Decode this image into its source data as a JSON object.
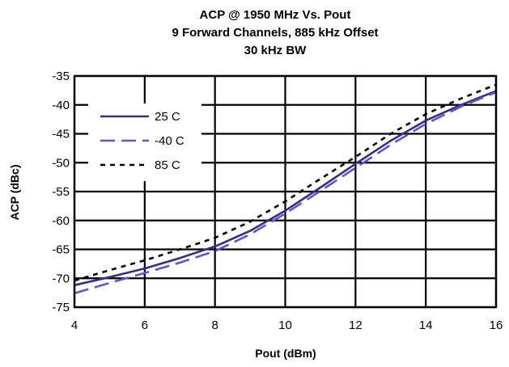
{
  "chart_data": {
    "type": "line",
    "title": [
      "ACP @ 1950 MHz Vs. Pout",
      "9 Forward Channels, 885 kHz Offset",
      "30 kHz BW"
    ],
    "xlabel": "Pout (dBm)",
    "ylabel": "ACP (dBc)",
    "xlim": [
      4,
      16
    ],
    "ylim": [
      -75,
      -35
    ],
    "x_ticks": [
      "4",
      "6",
      "8",
      "10",
      "12",
      "14",
      "16"
    ],
    "y_ticks": [
      "-35",
      "-40",
      "-45",
      "-50",
      "-55",
      "-60",
      "-65",
      "-70",
      "-75"
    ],
    "grid": true,
    "legend_position": "top-left",
    "series": [
      {
        "name": "25 C",
        "color": "#3b2d7a",
        "style": "solid",
        "points": [
          [
            4,
            -71.2
          ],
          [
            5,
            -69.8
          ],
          [
            6,
            -68.3
          ],
          [
            7,
            -66.5
          ],
          [
            8,
            -64.5
          ],
          [
            9,
            -61.8
          ],
          [
            10,
            -58.3
          ],
          [
            11,
            -54.3
          ],
          [
            12,
            -50.2
          ],
          [
            13,
            -46.2
          ],
          [
            14,
            -42.7
          ],
          [
            15,
            -40.0
          ],
          [
            16,
            -37.6
          ]
        ]
      },
      {
        "name": "-40 C",
        "color": "#5c56c8",
        "style": "dashed",
        "points": [
          [
            4,
            -72.6
          ],
          [
            5,
            -70.8
          ],
          [
            6,
            -69.1
          ],
          [
            7,
            -67.3
          ],
          [
            8,
            -65.3
          ],
          [
            9,
            -62.4
          ],
          [
            10,
            -58.8
          ],
          [
            11,
            -54.9
          ],
          [
            12,
            -50.9
          ],
          [
            13,
            -46.9
          ],
          [
            14,
            -43.3
          ],
          [
            15,
            -40.3
          ],
          [
            16,
            -37.8
          ]
        ]
      },
      {
        "name": "85 C",
        "color": "#000000",
        "style": "dotted",
        "points": [
          [
            4,
            -70.4
          ],
          [
            5,
            -68.6
          ],
          [
            6,
            -66.9
          ],
          [
            7,
            -65.0
          ],
          [
            8,
            -63.0
          ],
          [
            9,
            -60.2
          ],
          [
            10,
            -56.7
          ],
          [
            11,
            -52.8
          ],
          [
            12,
            -49.0
          ],
          [
            13,
            -45.0
          ],
          [
            14,
            -41.6
          ],
          [
            15,
            -38.9
          ],
          [
            16,
            -36.5
          ]
        ]
      }
    ]
  }
}
